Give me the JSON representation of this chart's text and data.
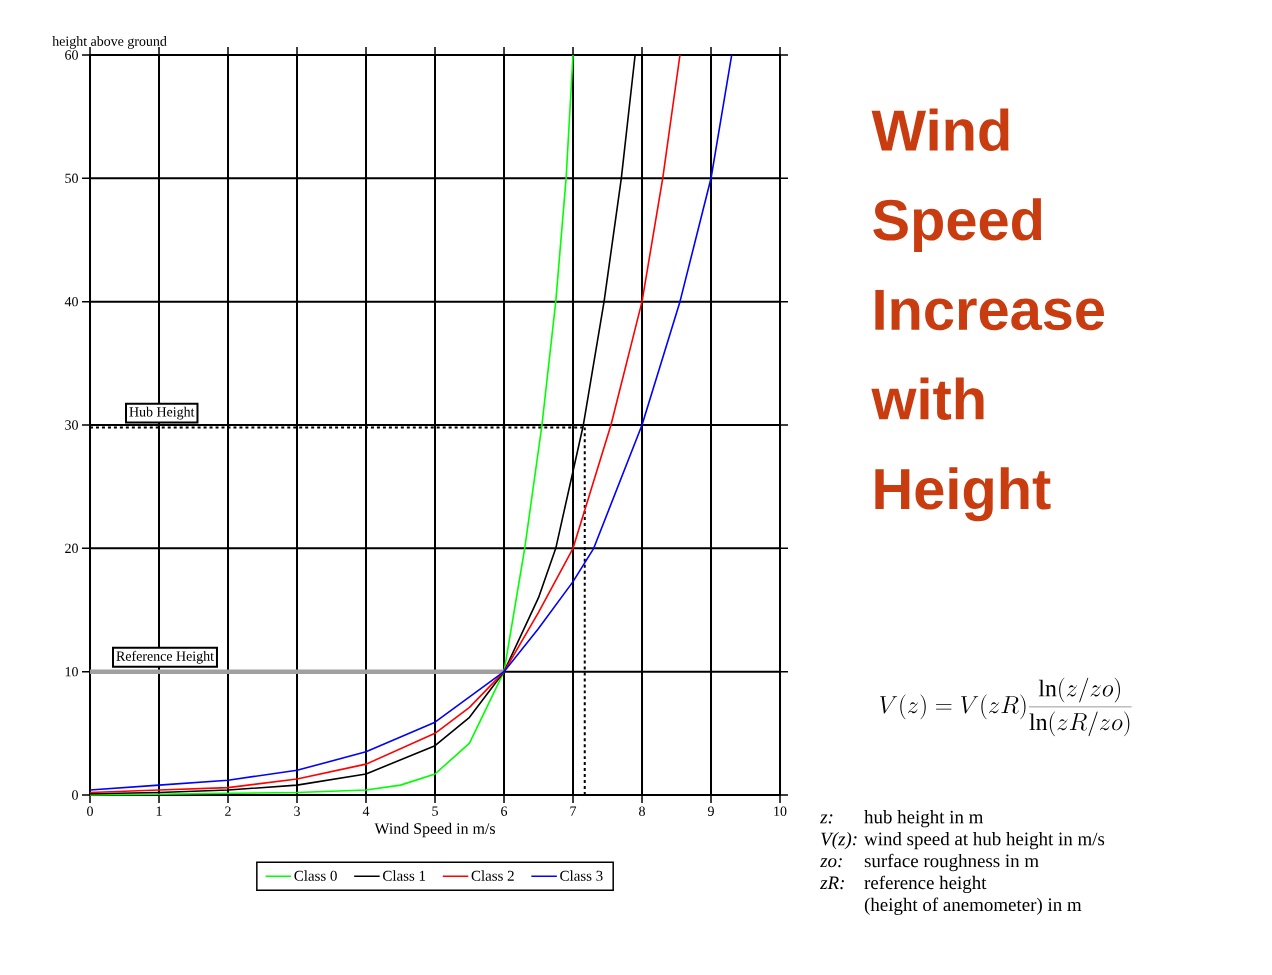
{
  "chart_data": {
    "type": "line",
    "title": "Wind Speed Increase with Height",
    "xlabel": "Wind Speed in m/s",
    "ylabel": "height above ground",
    "xlim": [
      0,
      10
    ],
    "ylim": [
      0,
      60
    ],
    "xticks": [
      0,
      1,
      2,
      3,
      4,
      5,
      6,
      7,
      8,
      9,
      10
    ],
    "yticks": [
      0,
      10,
      20,
      30,
      40,
      50,
      60
    ],
    "grid": true,
    "legend": "bottom",
    "marker": "none",
    "line_style": "solid",
    "series": [
      {
        "name": "Class 0",
        "color": "#00ff00",
        "x": [
          0,
          3,
          4,
          4.5,
          5,
          5.5,
          6,
          6.3,
          6.55,
          6.75,
          6.9,
          7.0
        ],
        "values": [
          0,
          0.2,
          0.4,
          0.8,
          1.7,
          4.2,
          10,
          20,
          30,
          40,
          50,
          60
        ]
      },
      {
        "name": "Class 1",
        "color": "#000000",
        "x": [
          0,
          1,
          2,
          3,
          4,
          5,
          5.5,
          6,
          6.5,
          6.75,
          7.15,
          7.45,
          7.7,
          7.9
        ],
        "values": [
          0.1,
          0.2,
          0.4,
          0.8,
          1.7,
          4.0,
          6.3,
          10,
          16,
          20,
          30,
          40,
          50,
          60
        ]
      },
      {
        "name": "Class 2",
        "color": "#ff0000",
        "x": [
          0,
          1,
          2,
          3,
          4,
          5,
          5.5,
          6,
          6.5,
          7.0,
          7.55,
          8.0,
          8.3,
          8.55
        ],
        "values": [
          0.2,
          0.4,
          0.6,
          1.3,
          2.5,
          5.0,
          7.1,
          10,
          14.8,
          20,
          30,
          40,
          50,
          60
        ]
      },
      {
        "name": "Class 3",
        "color": "#0000ff",
        "x": [
          0,
          1,
          2,
          3,
          4,
          5,
          6,
          6.5,
          7.0,
          7.3,
          8.0,
          8.55,
          9.0,
          9.3
        ],
        "values": [
          0.4,
          0.8,
          1.2,
          2.0,
          3.5,
          5.9,
          10,
          13.5,
          17.3,
          20,
          30,
          40,
          50,
          60
        ]
      }
    ],
    "ref_lines": [
      {
        "axis": "y",
        "value": 29.8,
        "label": "Hub Height",
        "color": "#000000",
        "line_style": "dashed"
      },
      {
        "axis": "y",
        "value": 10,
        "label": "Reference Height",
        "color": "#a0a0a0",
        "line_style": "solid"
      },
      {
        "axis": "x",
        "value": 7.17,
        "color": "#000000",
        "line_style": "dashed"
      }
    ],
    "annotations": [
      "V(z)=V(zR)\\frac{\\ln(z/zo)}{\\ln(zR/zo)}",
      "z:",
      "hub height in m",
      "V(z):",
      "wind speed at hub height in m/s",
      "zo:",
      "surface roughness in m",
      "zR:",
      "reference height",
      "(height of anemometer) in m"
    ]
  }
}
